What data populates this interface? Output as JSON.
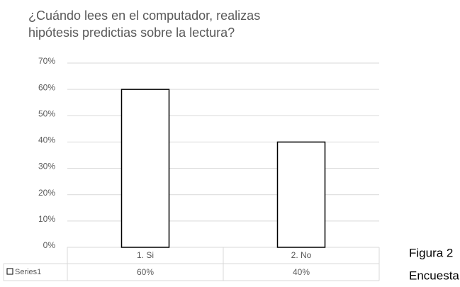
{
  "chart_data": {
    "type": "bar",
    "title": "¿Cuándo lees en el computador, realizas hipótesis predictias sobre la lectura?",
    "categories": [
      "1. Si",
      "2. No"
    ],
    "series": [
      {
        "name": "Series1",
        "color": "#ffffff",
        "values": [
          60,
          40
        ],
        "value_labels": [
          "60%",
          "40%"
        ]
      }
    ],
    "ylim": [
      0,
      70
    ],
    "yticks": [
      {
        "value": 0,
        "label": "0%"
      },
      {
        "value": 10,
        "label": "10%"
      },
      {
        "value": 20,
        "label": "20%"
      },
      {
        "value": 30,
        "label": "30%"
      },
      {
        "value": 40,
        "label": "40%"
      },
      {
        "value": 50,
        "label": "50%"
      },
      {
        "value": 60,
        "label": "60%"
      },
      {
        "value": 70,
        "label": "70%"
      }
    ],
    "grid": true,
    "annotations": [
      "Figura 2",
      "Encuesta"
    ]
  }
}
